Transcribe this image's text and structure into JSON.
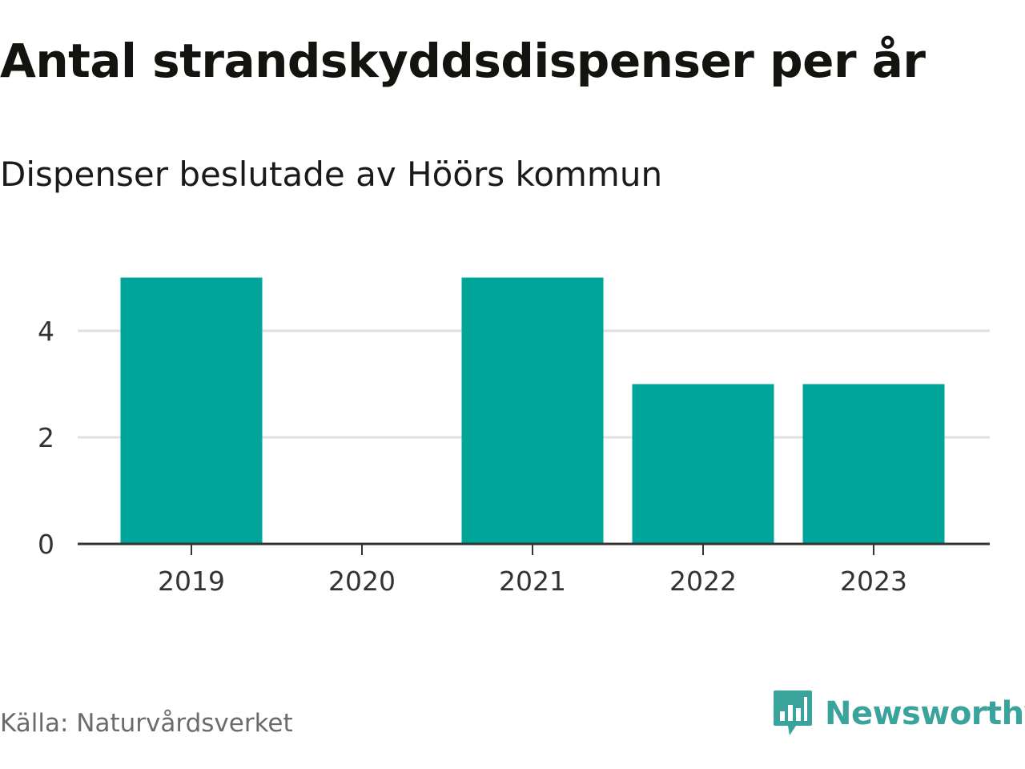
{
  "header": {
    "title": "Antal strandskyddsdispenser per år",
    "subtitle": "Dispenser beslutade av Höörs kommun"
  },
  "footer": {
    "source": "Källa: Naturvårdsverket",
    "brand": "Newsworthy",
    "brand_icon": "newsworthy-bar-chart-icon"
  },
  "colors": {
    "bar": "#00a59a",
    "grid": "#e0e0e0",
    "axis": "#333333",
    "brand": "#3aa39c"
  },
  "chart_data": {
    "type": "bar",
    "title": "Antal strandskyddsdispenser per år",
    "subtitle": "Dispenser beslutade av Höörs kommun",
    "xlabel": "",
    "ylabel": "",
    "categories": [
      "2019",
      "2020",
      "2021",
      "2022",
      "2023"
    ],
    "values": [
      5,
      0,
      5,
      3,
      3
    ],
    "ylim": [
      0,
      5
    ],
    "yticks": [
      0,
      2,
      4
    ],
    "grid": true,
    "source": "Källa: Naturvårdsverket"
  }
}
